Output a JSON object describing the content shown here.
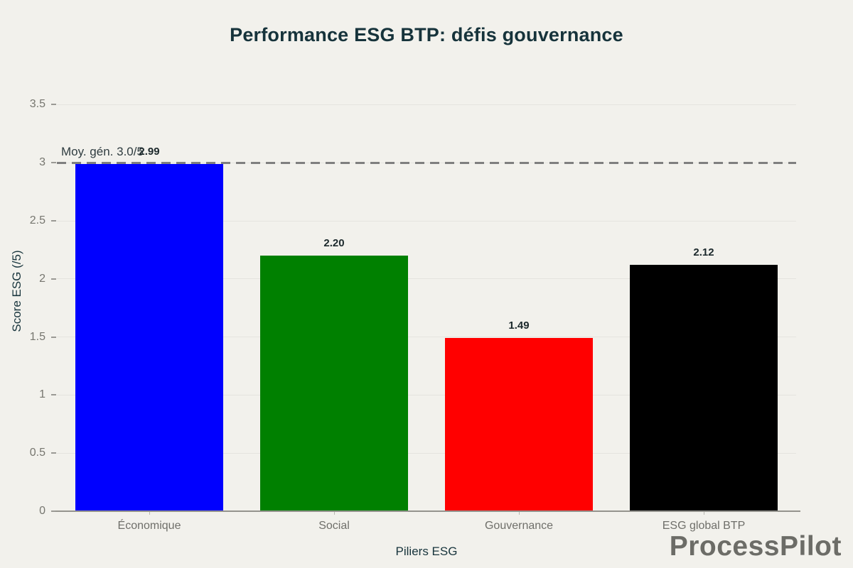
{
  "header": {
    "title": "Performance ESG BTP: défis gouvernance"
  },
  "watermark": {
    "text": "ProcessPilot"
  },
  "colors": {
    "background": "#f2f1ec",
    "title_text": "#16333b",
    "axis_title_text": "#17343c",
    "tick_text": "#76766f",
    "category_text": "#6f6f6a",
    "value_label_text": "#1c292c",
    "gridline": "#e5e4df",
    "axis_line": "#94938d",
    "reference_line": "#7f7f7f",
    "watermark_text": "#6c6c67"
  },
  "chart_data": {
    "type": "bar",
    "title": "Performance ESG BTP: défis gouvernance",
    "categories": [
      "Économique",
      "Social",
      "Gouvernance",
      "ESG global BTP"
    ],
    "values": [
      2.99,
      2.2,
      1.49,
      2.12
    ],
    "value_labels": [
      "2.99",
      "2.20",
      "1.49",
      "2.12"
    ],
    "bar_colors": [
      "#0000ff",
      "#008000",
      "#ff0000",
      "#000000"
    ],
    "xlabel": "Piliers ESG",
    "ylabel": "Score ESG (/5)",
    "ylim": [
      0,
      3.79
    ],
    "yticks": [
      0,
      0.5,
      1,
      1.5,
      2,
      2.5,
      3,
      3.5
    ],
    "ytick_labels": [
      "0",
      "0.5",
      "1",
      "1.5",
      "2",
      "2.5",
      "3",
      "3.5"
    ],
    "grid": true,
    "legend": false,
    "bar_width_fraction": 0.8,
    "reference_line": {
      "value": 3.0,
      "label": "Moy. gén. 3.0/5",
      "style": "dashed"
    }
  }
}
